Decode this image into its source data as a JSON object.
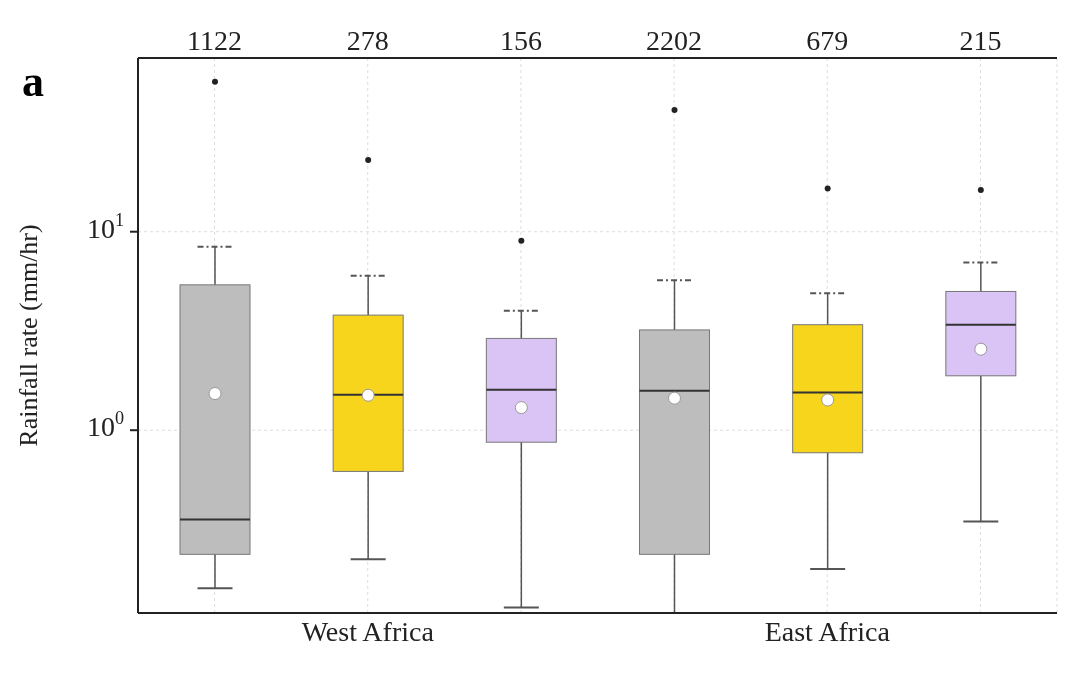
{
  "chart_data": {
    "type": "box",
    "ylabel": "Rainfall rate (mm/hr)",
    "categories": [
      null,
      "West Africa",
      null,
      null,
      "East Africa",
      null
    ],
    "colors": [
      "#bdbdbd",
      "#f7d51d",
      "#d9c4f5",
      "#bdbdbd",
      "#f7d51d",
      "#d9c4f5"
    ],
    "boxes": [
      {
        "low": 0.16,
        "q1": 0.237,
        "median": 0.355,
        "q3": 5.4,
        "high": 8.4,
        "mean": 1.53,
        "outliers": [
          57
        ]
      },
      {
        "low": 0.224,
        "q1": 0.62,
        "median": 1.51,
        "q3": 3.8,
        "high": 6,
        "mean": 1.5,
        "outliers": [
          23
        ]
      },
      {
        "low": 0.128,
        "q1": 0.87,
        "median": 1.6,
        "q3": 2.9,
        "high": 4,
        "mean": 1.3,
        "outliers": [
          9
        ]
      },
      {
        "low": 0.12,
        "q1": 0.237,
        "median": 1.58,
        "q3": 3.2,
        "high": 5.7,
        "mean": 1.45,
        "outliers": [
          41
        ]
      },
      {
        "low": 0.2,
        "q1": 0.77,
        "median": 1.55,
        "q3": 3.4,
        "high": 4.9,
        "mean": 1.42,
        "outliers": [
          16.5
        ]
      },
      {
        "low": 0.347,
        "q1": 1.88,
        "median": 3.4,
        "q3": 5,
        "high": 7,
        "mean": 2.56,
        "outliers": [
          16.2
        ]
      }
    ],
    "log": "y",
    "ylim": [
      0.12,
      75
    ],
    "yticks": [
      {
        "value": 1,
        "label": "10$^{0}$"
      },
      {
        "value": 10,
        "label": "10$^{1}$"
      }
    ],
    "grid": true,
    "annotations": [
      "a",
      "1122",
      "278",
      "156",
      "2202",
      "679",
      "215"
    ]
  }
}
